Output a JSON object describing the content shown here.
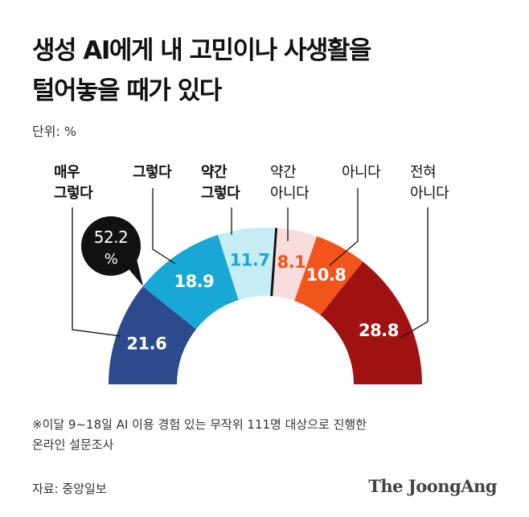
{
  "title_lines": [
    "생성 AI에게 내 고민이나 사생활을",
    "털어놓을 때가 있다"
  ],
  "unit": "단위: %",
  "chart_data": {
    "type": "pie",
    "variant": "half-donut",
    "categories": [
      {
        "label": [
          "매우",
          "그렇다"
        ],
        "value": 21.6,
        "color": "#2e4a8f"
      },
      {
        "label": [
          "그렇다"
        ],
        "value": 18.9,
        "color": "#19a7d6"
      },
      {
        "label": [
          "약간",
          "그렇다"
        ],
        "value": 11.7,
        "color": "#c6ecf4"
      },
      {
        "label": [
          "약간",
          "아니다"
        ],
        "value": 8.1,
        "color": "#fadcdc"
      },
      {
        "label": [
          "아니다"
        ],
        "value": 10.8,
        "color": "#f2541b"
      },
      {
        "label": [
          "전혀",
          "아니다"
        ],
        "value": 28.8,
        "color": "#a01212"
      }
    ],
    "value_label_colors": [
      "#ffffff",
      "#ffffff",
      "#19a7d6",
      "#f2541b",
      "#ffffff",
      "#ffffff"
    ],
    "callout": [
      "52.2",
      "%"
    ]
  },
  "note_lines": [
    "※이달 9~18일 AI 이용 경험 있는 무작위 111명 대상으로 진행한",
    "온라인 설문조사"
  ],
  "source": "자료: 중앙일보",
  "brand": "The JoongAng"
}
